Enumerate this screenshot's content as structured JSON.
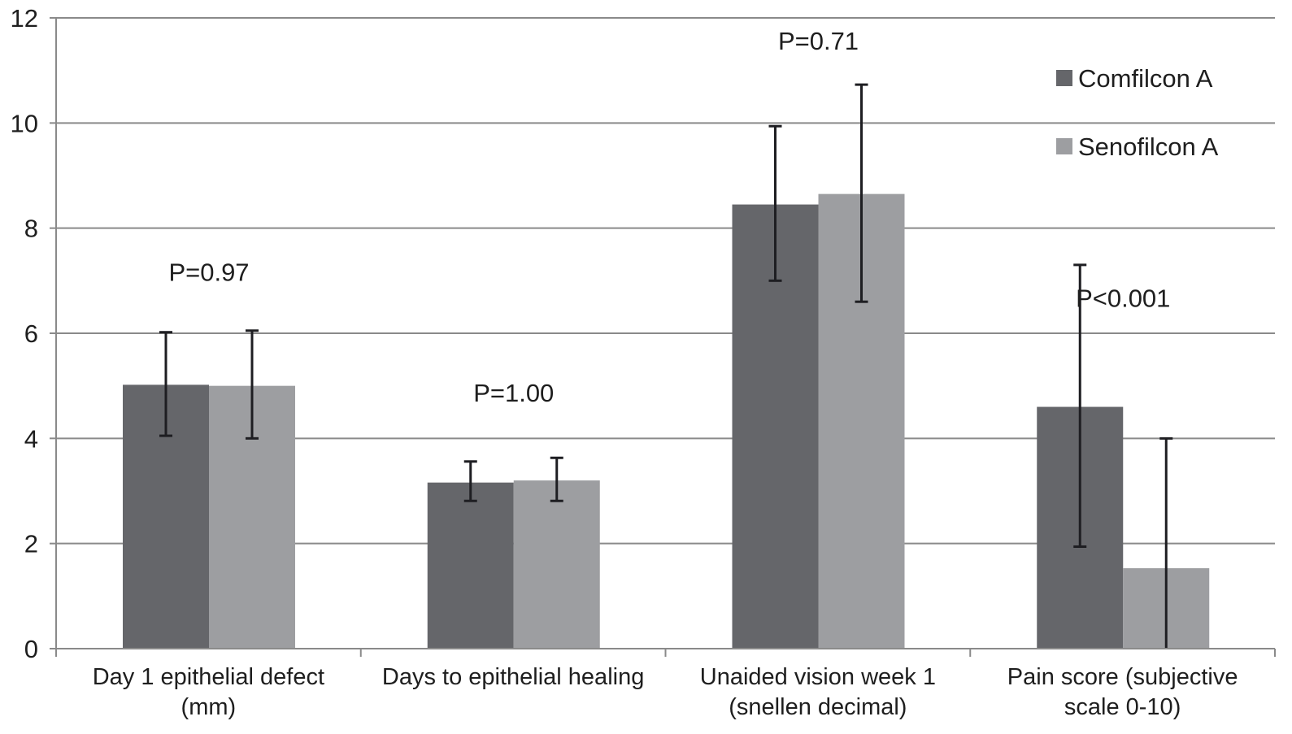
{
  "chart_data": {
    "type": "bar",
    "title": "",
    "xlabel": "",
    "ylabel": "",
    "ylim": [
      0,
      12
    ],
    "yticks": [
      "0",
      "2",
      "4",
      "6",
      "8",
      "10",
      "12"
    ],
    "grid": true,
    "legend_position": "top-right",
    "categories": [
      [
        "Day 1 epithelial defect",
        "(mm)"
      ],
      [
        "Days to epithelial healing"
      ],
      [
        "Unaided vision week 1",
        "(snellen decimal)"
      ],
      [
        "Pain score (subjective",
        "scale 0-10)"
      ]
    ],
    "series": [
      {
        "name": "Comfilcon A",
        "color": "#65666a",
        "values": [
          5.02,
          3.16,
          8.45,
          4.6
        ],
        "error_low": [
          4.05,
          2.81,
          7.0,
          1.94
        ],
        "error_high": [
          6.02,
          3.56,
          9.94,
          7.3
        ]
      },
      {
        "name": "Senofilcon A",
        "color": "#9d9ea1",
        "values": [
          5.0,
          3.2,
          8.65,
          1.53
        ],
        "error_low": [
          4.0,
          2.81,
          6.6,
          0.0
        ],
        "error_high": [
          6.05,
          3.63,
          10.73,
          4.0
        ]
      }
    ],
    "annotations": [
      "P=0.97",
      "P=1.00",
      "P=0.71",
      "P<0.001"
    ],
    "annotation_y": [
      7.0,
      4.7,
      11.4,
      6.5
    ]
  }
}
